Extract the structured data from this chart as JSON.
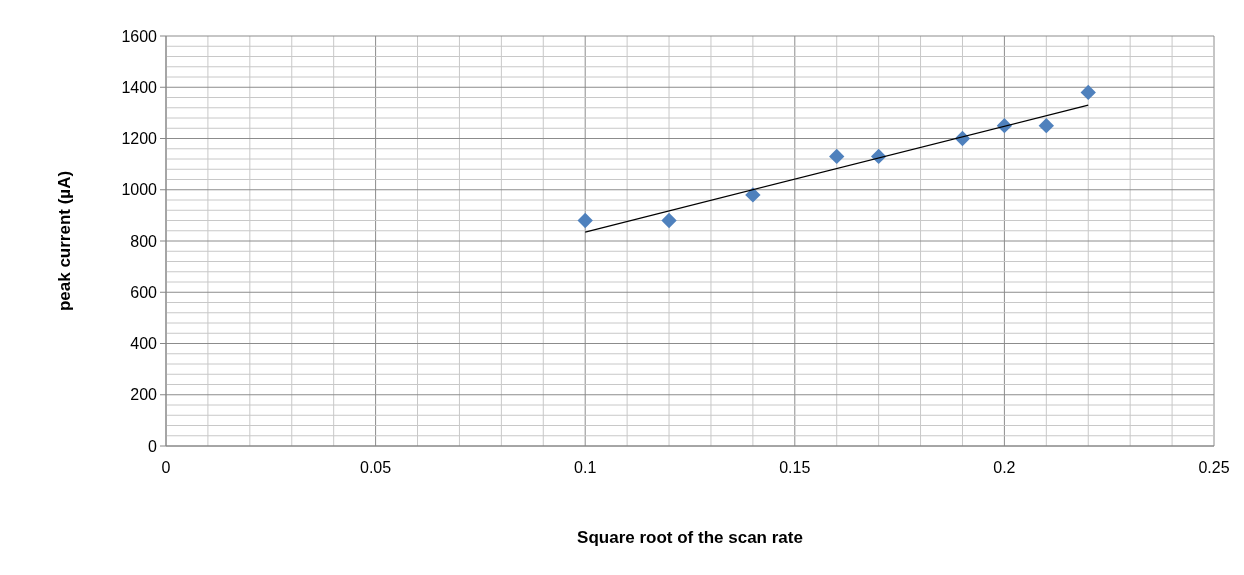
{
  "chart_data": {
    "type": "scatter",
    "xlabel": "Square root of the scan rate",
    "ylabel": "peak current (µA)",
    "xlim": [
      0,
      0.25
    ],
    "ylim": [
      0,
      1600
    ],
    "xticks": [
      0,
      {
        "value": 0.01,
        "label": null
      },
      {
        "value": 0.02,
        "label": null
      },
      {
        "value": 0.03,
        "label": null
      },
      {
        "value": 0.04,
        "label": null
      },
      0.05,
      {
        "value": 0.06,
        "label": null
      },
      {
        "value": 0.07,
        "label": null
      },
      {
        "value": 0.08,
        "label": null
      },
      {
        "value": 0.09,
        "label": null
      },
      0.1,
      {
        "value": 0.11,
        "label": null
      },
      {
        "value": 0.12,
        "label": null
      },
      {
        "value": 0.13,
        "label": null
      },
      {
        "value": 0.14,
        "label": null
      },
      0.15,
      {
        "value": 0.16,
        "label": null
      },
      {
        "value": 0.17,
        "label": null
      },
      {
        "value": 0.18,
        "label": null
      },
      {
        "value": 0.19,
        "label": null
      },
      0.2,
      {
        "value": 0.21,
        "label": null
      },
      {
        "value": 0.22,
        "label": null
      },
      {
        "value": 0.23,
        "label": null
      },
      {
        "value": 0.24,
        "label": null
      },
      0.25
    ],
    "yticks": [
      0,
      {
        "value": 40,
        "label": null
      },
      {
        "value": 80,
        "label": null
      },
      {
        "value": 120,
        "label": null
      },
      {
        "value": 160,
        "label": null
      },
      200,
      {
        "value": 240,
        "label": null
      },
      {
        "value": 280,
        "label": null
      },
      {
        "value": 320,
        "label": null
      },
      {
        "value": 360,
        "label": null
      },
      400,
      {
        "value": 440,
        "label": null
      },
      {
        "value": 480,
        "label": null
      },
      {
        "value": 520,
        "label": null
      },
      {
        "value": 560,
        "label": null
      },
      600,
      {
        "value": 640,
        "label": null
      },
      {
        "value": 680,
        "label": null
      },
      {
        "value": 720,
        "label": null
      },
      {
        "value": 760,
        "label": null
      },
      800,
      {
        "value": 840,
        "label": null
      },
      {
        "value": 880,
        "label": null
      },
      {
        "value": 920,
        "label": null
      },
      {
        "value": 960,
        "label": null
      },
      1000,
      {
        "value": 1040,
        "label": null
      },
      {
        "value": 1080,
        "label": null
      },
      {
        "value": 1120,
        "label": null
      },
      {
        "value": 1160,
        "label": null
      },
      1200,
      {
        "value": 1240,
        "label": null
      },
      {
        "value": 1280,
        "label": null
      },
      {
        "value": 1320,
        "label": null
      },
      {
        "value": 1360,
        "label": null
      },
      1400,
      {
        "value": 1440,
        "label": null
      },
      {
        "value": 1480,
        "label": null
      },
      {
        "value": 1520,
        "label": null
      },
      {
        "value": 1560,
        "label": null
      },
      1600
    ],
    "grid": true,
    "marker": "diamond",
    "series": [
      {
        "color": "#4f81bd",
        "x": [
          0.1,
          0.12,
          0.14,
          0.16,
          0.17,
          0.19,
          0.2,
          0.21,
          0.22
        ],
        "values": [
          880,
          880,
          980,
          1130,
          1130,
          1200,
          1250,
          1250,
          1380
        ]
      },
      {
        "type": "line",
        "color": "#000000",
        "x": [
          0.1,
          0.22
        ],
        "values": [
          835,
          1330
        ],
        "marker": "none",
        "line_style": "solid"
      }
    ]
  }
}
